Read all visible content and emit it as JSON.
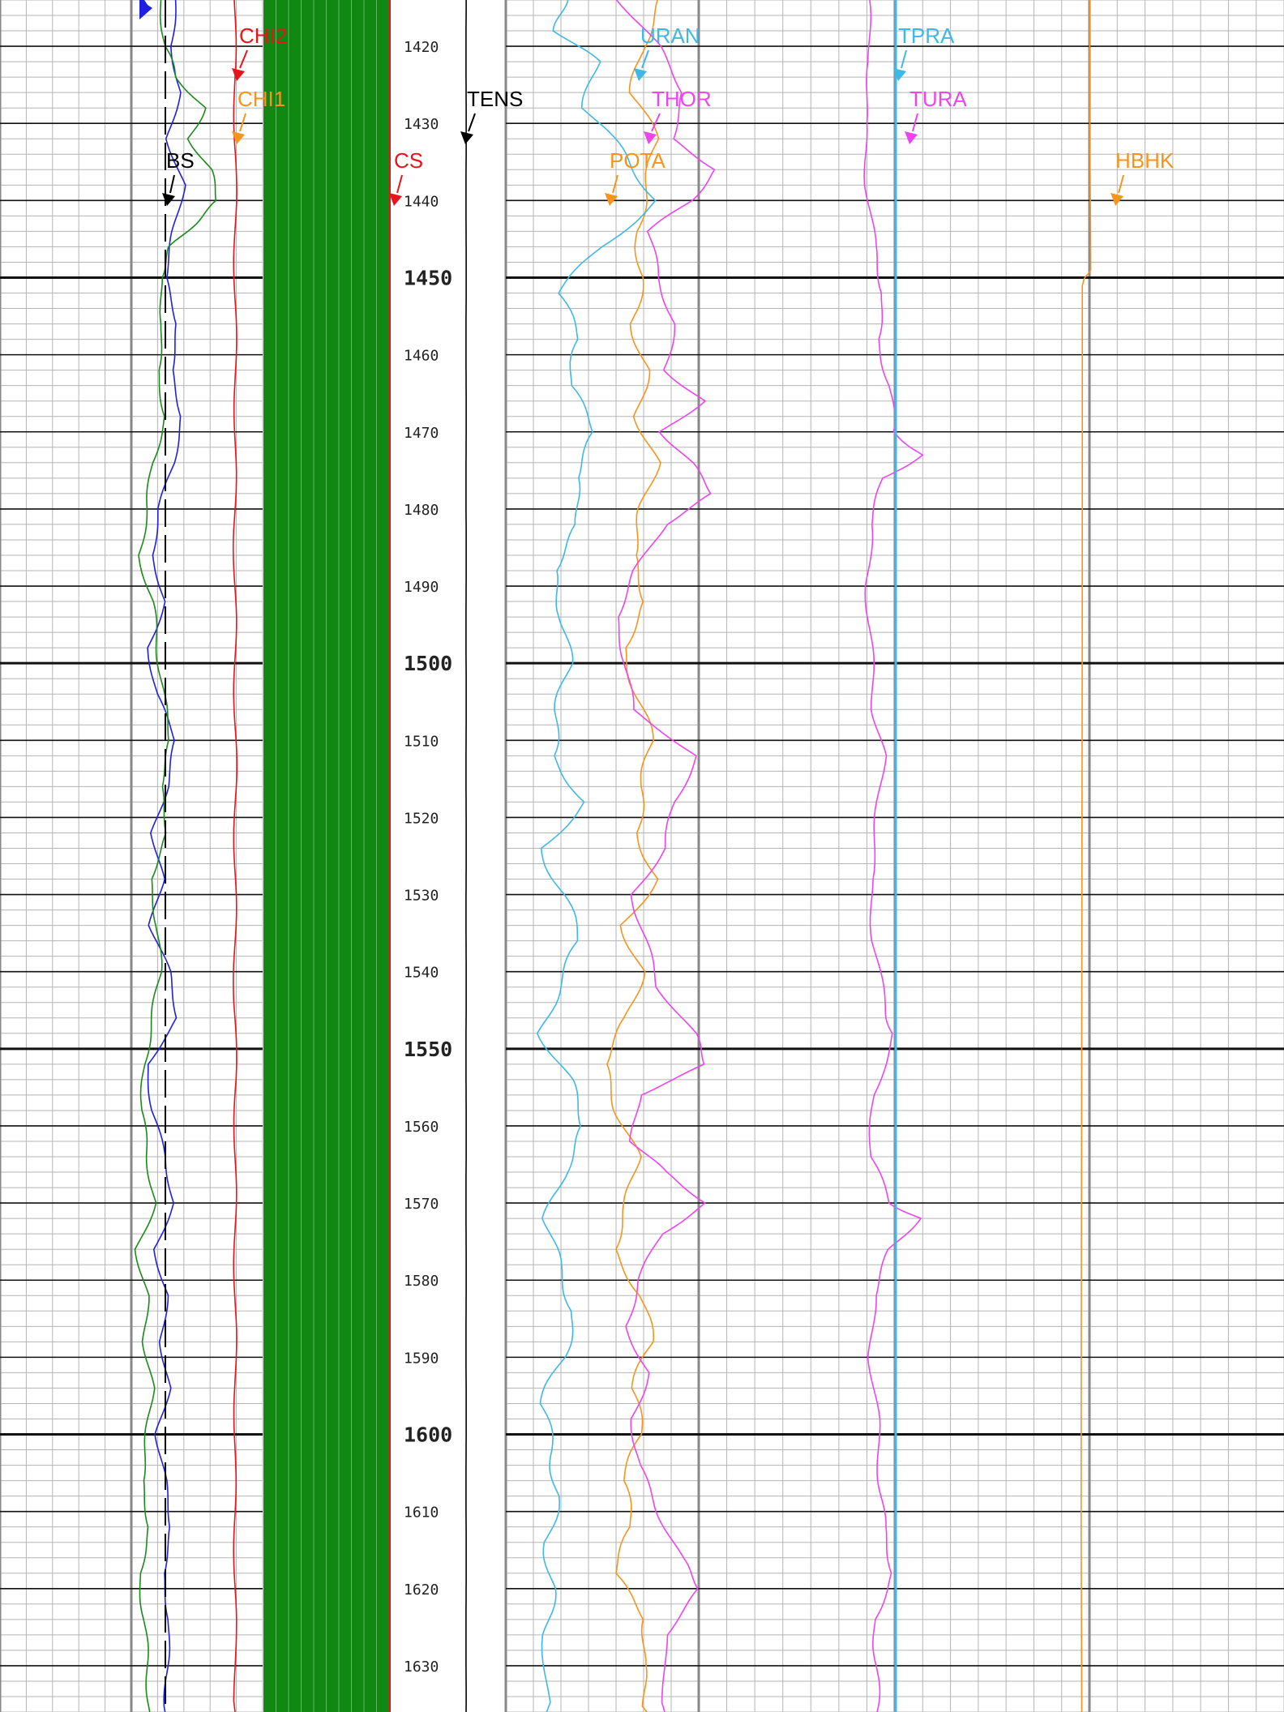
{
  "chart_data": {
    "type": "line",
    "title": "",
    "xlabel": "",
    "ylabel": "",
    "depth_range": [
      1414,
      1636
    ],
    "depth_labels": [
      1420,
      1430,
      1440,
      1450,
      1460,
      1470,
      1480,
      1490,
      1500,
      1510,
      1520,
      1530,
      1540,
      1550,
      1560,
      1570,
      1580,
      1590,
      1600,
      1610,
      1620,
      1630
    ],
    "depth_labels_text": [
      "1420",
      "1430",
      "1440",
      "1450",
      "1460",
      "1470",
      "1480",
      "1490",
      "1500",
      "1510",
      "1520",
      "1530",
      "1540",
      "1550",
      "1560",
      "1570",
      "1580",
      "1590",
      "1600",
      "1610",
      "1620",
      "1630"
    ],
    "major_depths": [
      1450,
      1500,
      1550,
      1600
    ],
    "grid": true,
    "curves": [
      {
        "name": "CHI2",
        "color": "#e8141b",
        "track": 1
      },
      {
        "name": "CHI1",
        "color": "#f7941d",
        "track": 1
      },
      {
        "name": "BS",
        "color": "#000000",
        "track": 1
      },
      {
        "name": "CS",
        "color": "#e8141b",
        "track": 2
      },
      {
        "name": "TENS",
        "color": "#000000",
        "track": 2
      },
      {
        "name": "URAN",
        "color": "#3fb8e8",
        "track": 3
      },
      {
        "name": "THOR",
        "color": "#ee44ee",
        "track": 3
      },
      {
        "name": "POTA",
        "color": "#f7941d",
        "track": 3
      },
      {
        "name": "TPRA",
        "color": "#3fb8e8",
        "track": 4
      },
      {
        "name": "TURA",
        "color": "#ee44ee",
        "track": 4
      },
      {
        "name": "HBHK",
        "color": "#f7941d",
        "track": 4
      }
    ],
    "series": [
      {
        "key": "blue",
        "color": "#1f1fe0",
        "depth": [
          1414,
          1420,
          1426,
          1432,
          1438,
          1444,
          1450,
          1456,
          1462,
          1468,
          1474,
          1480,
          1486,
          1492,
          1498,
          1504,
          1510,
          1516,
          1522,
          1528,
          1534,
          1540,
          1546,
          1552,
          1558,
          1564,
          1570,
          1576,
          1582,
          1588,
          1594,
          1600,
          1606,
          1612,
          1618,
          1624,
          1630,
          1636
        ],
        "values": [
          0.82,
          0.78,
          0.86,
          0.74,
          0.9,
          0.8,
          0.72,
          0.84,
          0.78,
          0.88,
          0.8,
          0.66,
          0.6,
          0.72,
          0.56,
          0.64,
          0.82,
          0.74,
          0.6,
          0.7,
          0.58,
          0.76,
          0.84,
          0.55,
          0.6,
          0.72,
          0.8,
          0.62,
          0.74,
          0.68,
          0.76,
          0.64,
          0.72,
          0.78,
          0.7,
          0.76,
          0.74,
          0.72
        ]
      },
      {
        "key": "green",
        "color": "#1a8a1a",
        "depth": [
          1414,
          1420,
          1424,
          1428,
          1432,
          1436,
          1440,
          1443,
          1446,
          1450,
          1456,
          1462,
          1468,
          1474,
          1480,
          1486,
          1492,
          1498,
          1504,
          1510,
          1516,
          1522,
          1528,
          1534,
          1540,
          1546,
          1552,
          1558,
          1564,
          1570,
          1576,
          1582,
          1588,
          1594,
          1600,
          1606,
          1612,
          1618,
          1624,
          1630,
          1636
        ],
        "values": [
          1.22,
          1.26,
          1.34,
          1.56,
          1.44,
          1.6,
          1.66,
          1.48,
          1.3,
          1.22,
          1.24,
          1.2,
          1.26,
          1.16,
          1.12,
          1.06,
          1.16,
          1.2,
          1.24,
          1.3,
          1.22,
          1.28,
          1.14,
          1.2,
          1.22,
          1.16,
          1.1,
          1.08,
          1.12,
          1.18,
          1.04,
          1.12,
          1.1,
          1.16,
          1.12,
          1.08,
          1.14,
          1.06,
          1.1,
          1.12,
          1.14
        ]
      },
      {
        "key": "chi_red",
        "color": "#e8141b",
        "depth": [
          1414,
          1424,
          1434,
          1444,
          1454,
          1464,
          1474,
          1484,
          1494,
          1504,
          1514,
          1524,
          1534,
          1544,
          1554,
          1564,
          1574,
          1584,
          1594,
          1604,
          1614,
          1624,
          1636
        ],
        "values": [
          0.5,
          0.49,
          0.51,
          0.5,
          0.5,
          0.51,
          0.5,
          0.49,
          0.5,
          0.5,
          0.51,
          0.5,
          0.5,
          0.49,
          0.51,
          0.5,
          0.5,
          0.5,
          0.51,
          0.49,
          0.5,
          0.5,
          0.5
        ]
      },
      {
        "key": "tens",
        "color": "#000000",
        "depth": [
          1414,
          1424,
          1434,
          1444,
          1454,
          1464,
          1474,
          1484,
          1494,
          1504,
          1514,
          1524,
          1534,
          1544,
          1554,
          1564,
          1574,
          1584,
          1594,
          1604,
          1614,
          1624,
          1636
        ],
        "values": [
          0.5,
          0.5,
          0.5,
          0.5,
          0.5,
          0.5,
          0.5,
          0.5,
          0.5,
          0.5,
          0.5,
          0.5,
          0.5,
          0.5,
          0.5,
          0.5,
          0.5,
          0.5,
          0.5,
          0.5,
          0.5,
          0.5,
          0.5
        ]
      },
      {
        "key": "pota",
        "color": "#f7941d",
        "depth": [
          1414,
          1420,
          1426,
          1432,
          1438,
          1444,
          1450,
          1456,
          1462,
          1468,
          1474,
          1480,
          1486,
          1492,
          1498,
          1504,
          1510,
          1516,
          1522,
          1528,
          1534,
          1540,
          1546,
          1552,
          1558,
          1564,
          1570,
          1576,
          1582,
          1588,
          1594,
          1600,
          1606,
          1612,
          1618,
          1624,
          1630,
          1636
        ],
        "values": [
          0.72,
          0.64,
          0.6,
          0.7,
          0.66,
          0.62,
          0.64,
          0.6,
          0.66,
          0.62,
          0.7,
          0.64,
          0.6,
          0.66,
          0.56,
          0.62,
          0.68,
          0.64,
          0.62,
          0.7,
          0.56,
          0.64,
          0.58,
          0.48,
          0.54,
          0.62,
          0.58,
          0.52,
          0.64,
          0.68,
          0.6,
          0.64,
          0.56,
          0.6,
          0.52,
          0.66,
          0.64,
          0.66
        ]
      },
      {
        "key": "uran",
        "color": "#3fb8e8",
        "depth": [
          1414,
          1418,
          1422,
          1428,
          1434,
          1440,
          1446,
          1452,
          1458,
          1464,
          1470,
          1476,
          1482,
          1488,
          1494,
          1500,
          1506,
          1512,
          1518,
          1524,
          1530,
          1536,
          1542,
          1548,
          1554,
          1560,
          1566,
          1572,
          1578,
          1584,
          1590,
          1596,
          1602,
          1608,
          1614,
          1620,
          1626,
          1636
        ],
        "values": [
          0.22,
          0.2,
          0.34,
          0.3,
          0.44,
          0.56,
          0.36,
          0.2,
          0.28,
          0.24,
          0.34,
          0.26,
          0.28,
          0.18,
          0.22,
          0.24,
          0.2,
          0.18,
          0.3,
          0.14,
          0.22,
          0.28,
          0.2,
          0.14,
          0.24,
          0.3,
          0.22,
          0.16,
          0.2,
          0.26,
          0.22,
          0.14,
          0.18,
          0.2,
          0.16,
          0.18,
          0.16,
          0.16
        ]
      },
      {
        "key": "thor",
        "color": "#ee44ee",
        "depth": [
          1414,
          1420,
          1426,
          1432,
          1436,
          1440,
          1444,
          1450,
          1456,
          1462,
          1466,
          1470,
          1474,
          1478,
          1482,
          1488,
          1494,
          1500,
          1506,
          1512,
          1518,
          1524,
          1530,
          1536,
          1542,
          1548,
          1552,
          1556,
          1562,
          1566,
          1570,
          1574,
          1580,
          1586,
          1592,
          1598,
          1604,
          1610,
          1616,
          1620,
          1626,
          1636
        ],
        "values": [
          0.32,
          0.56,
          0.72,
          0.64,
          0.92,
          0.76,
          0.5,
          0.56,
          0.66,
          0.6,
          0.84,
          0.58,
          0.76,
          0.9,
          0.6,
          0.42,
          0.3,
          0.36,
          0.4,
          0.8,
          0.66,
          0.6,
          0.4,
          0.48,
          0.56,
          0.78,
          0.86,
          0.44,
          0.4,
          0.6,
          0.86,
          0.58,
          0.44,
          0.36,
          0.5,
          0.4,
          0.44,
          0.56,
          0.7,
          0.82,
          0.6,
          0.6
        ]
      },
      {
        "key": "tura",
        "color": "#ee44ee",
        "depth": [
          1414,
          1422,
          1430,
          1438,
          1446,
          1452,
          1458,
          1464,
          1470,
          1473,
          1476,
          1482,
          1490,
          1498,
          1506,
          1512,
          1520,
          1528,
          1536,
          1544,
          1548,
          1556,
          1564,
          1570,
          1572,
          1576,
          1582,
          1590,
          1598,
          1606,
          1612,
          1618,
          1624,
          1630,
          1636
        ],
        "values": [
          0.1,
          0.12,
          0.08,
          0.1,
          0.14,
          0.2,
          0.16,
          0.24,
          0.26,
          0.44,
          0.2,
          0.12,
          0.1,
          0.12,
          0.14,
          0.2,
          0.16,
          0.12,
          0.14,
          0.2,
          0.26,
          0.14,
          0.12,
          0.24,
          0.42,
          0.24,
          0.14,
          0.12,
          0.16,
          0.18,
          0.2,
          0.26,
          0.14,
          0.16,
          0.16
        ]
      },
      {
        "key": "hbhk",
        "color": "#f7941d",
        "depth": [
          1414,
          1449,
          1450,
          1451,
          1636
        ],
        "values": [
          0.1,
          0.1,
          0.06,
          0.03,
          0.03
        ]
      }
    ]
  }
}
